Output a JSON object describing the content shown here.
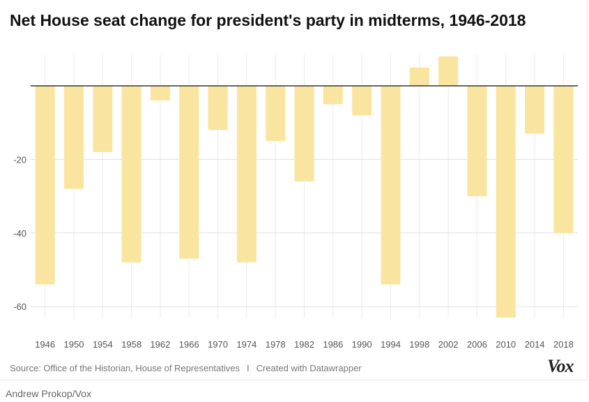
{
  "chart_data": {
    "type": "bar",
    "title": "Net House seat change for president's party in midterms, 1946-2018",
    "xlabel": "",
    "ylabel": "",
    "categories": [
      "1946",
      "1950",
      "1954",
      "1958",
      "1962",
      "1966",
      "1970",
      "1974",
      "1978",
      "1982",
      "1986",
      "1990",
      "1994",
      "1998",
      "2002",
      "2006",
      "2010",
      "2014",
      "2018"
    ],
    "values": [
      -54,
      -28,
      -18,
      -48,
      -4,
      -47,
      -12,
      -48,
      -15,
      -26,
      -5,
      -8,
      -54,
      5,
      8,
      -30,
      -63,
      -13,
      -40
    ],
    "ylim": [
      -64,
      8
    ],
    "yticks": [
      -20,
      -40,
      -60
    ],
    "ytick_labels": [
      "-20",
      "-40",
      "-60"
    ],
    "grid": true,
    "bar_color": "#fae5a0"
  },
  "footer": {
    "source": "Source: Office of the Historian, House of Representatives",
    "separator": "I",
    "created": "Created with Datawrapper",
    "logo": "Vox"
  },
  "credit": "Andrew Prokop/Vox"
}
